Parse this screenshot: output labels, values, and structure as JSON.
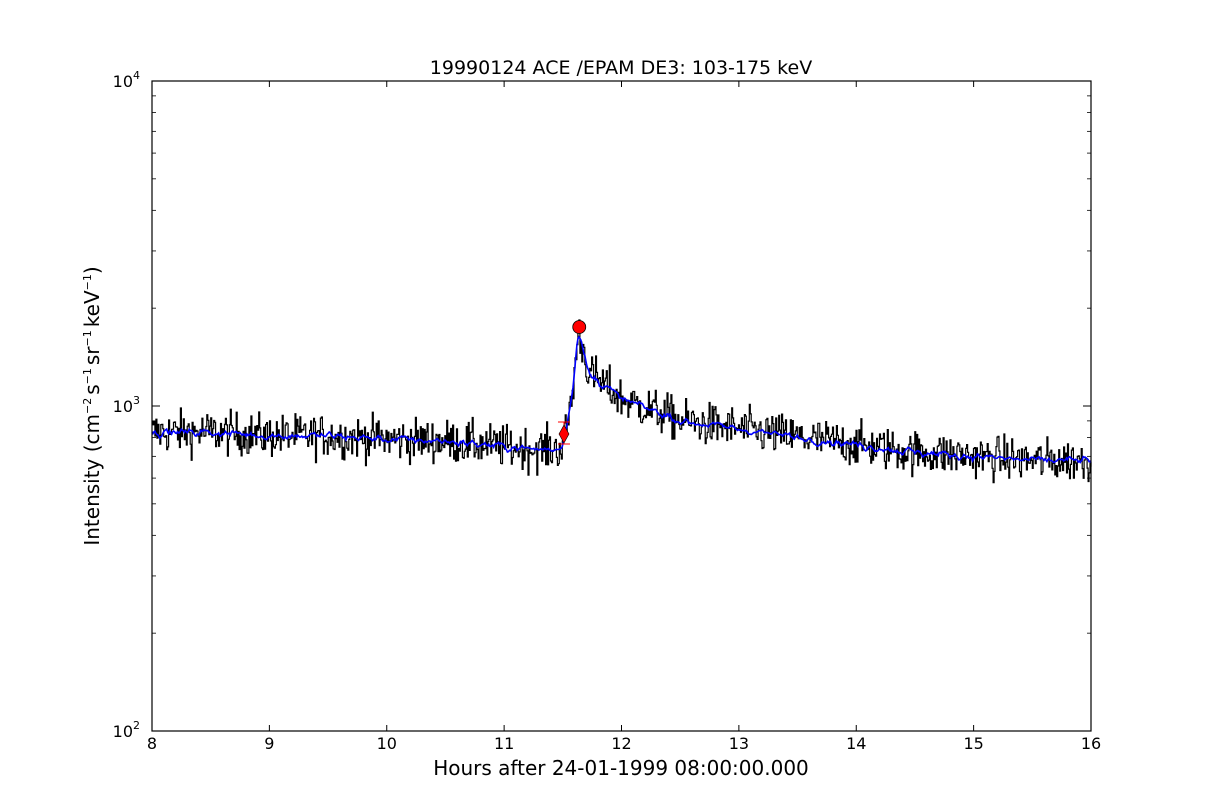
{
  "chart_data": {
    "type": "line",
    "title": "19990124 ACE /EPAM DE3: 103-175 keV",
    "xlabel": "Hours after 24-01-1999 08:00:00.000",
    "ylabel": {
      "prefix": "Intensity (cm",
      "exp1": "−2",
      "mid1": "s",
      "exp2": "−1",
      "mid2": "sr",
      "exp3": "−1",
      "mid3": "keV",
      "exp4": "−1",
      "suffix": ")"
    },
    "xlim": [
      8,
      16
    ],
    "ylim": [
      100,
      10000
    ],
    "yscale": "log",
    "grid": false,
    "x_ticks": [
      8,
      9,
      10,
      11,
      12,
      13,
      14,
      15,
      16
    ],
    "x_tick_labels": [
      "8",
      "9",
      "10",
      "11",
      "12",
      "13",
      "14",
      "15",
      "16"
    ],
    "y_ticks": [
      {
        "value": 100,
        "base": "10",
        "exp": "2"
      },
      {
        "value": 1000,
        "base": "10",
        "exp": "3"
      },
      {
        "value": 10000,
        "base": "10",
        "exp": "4"
      }
    ],
    "series": [
      {
        "style": "raw",
        "color": "#000000",
        "profile": [
          [
            8.0,
            830
          ],
          [
            8.5,
            830
          ],
          [
            9.0,
            810
          ],
          [
            9.5,
            810
          ],
          [
            10.0,
            790
          ],
          [
            10.5,
            780
          ],
          [
            11.0,
            750
          ],
          [
            11.3,
            735
          ],
          [
            11.48,
            740
          ],
          [
            11.52,
            820
          ],
          [
            11.58,
            1100
          ],
          [
            11.63,
            1700
          ],
          [
            11.68,
            1450
          ],
          [
            11.72,
            1250
          ],
          [
            11.8,
            1200
          ],
          [
            12.0,
            1050
          ],
          [
            12.3,
            960
          ],
          [
            12.5,
            900
          ],
          [
            13.0,
            850
          ],
          [
            13.5,
            800
          ],
          [
            14.0,
            760
          ],
          [
            14.5,
            720
          ],
          [
            15.0,
            700
          ],
          [
            15.5,
            680
          ],
          [
            16.0,
            680
          ]
        ]
      },
      {
        "style": "smoothed",
        "color": "#0000ff",
        "profile": [
          [
            8.0,
            830
          ],
          [
            8.5,
            830
          ],
          [
            9.0,
            810
          ],
          [
            9.5,
            810
          ],
          [
            10.0,
            790
          ],
          [
            10.5,
            780
          ],
          [
            11.0,
            750
          ],
          [
            11.3,
            735
          ],
          [
            11.48,
            740
          ],
          [
            11.52,
            820
          ],
          [
            11.58,
            1100
          ],
          [
            11.63,
            1700
          ],
          [
            11.68,
            1450
          ],
          [
            11.72,
            1250
          ],
          [
            11.8,
            1200
          ],
          [
            12.0,
            1050
          ],
          [
            12.3,
            960
          ],
          [
            12.5,
            900
          ],
          [
            13.0,
            850
          ],
          [
            13.5,
            800
          ],
          [
            14.0,
            760
          ],
          [
            14.5,
            720
          ],
          [
            15.0,
            700
          ],
          [
            15.5,
            680
          ],
          [
            16.0,
            680
          ]
        ]
      }
    ],
    "markers": [
      {
        "kind": "onset-diamond",
        "x": 11.51,
        "y": 820,
        "color": "#ff0000"
      },
      {
        "kind": "peak-circle",
        "x": 11.64,
        "y": 1750,
        "color": "#ff0000"
      }
    ]
  }
}
